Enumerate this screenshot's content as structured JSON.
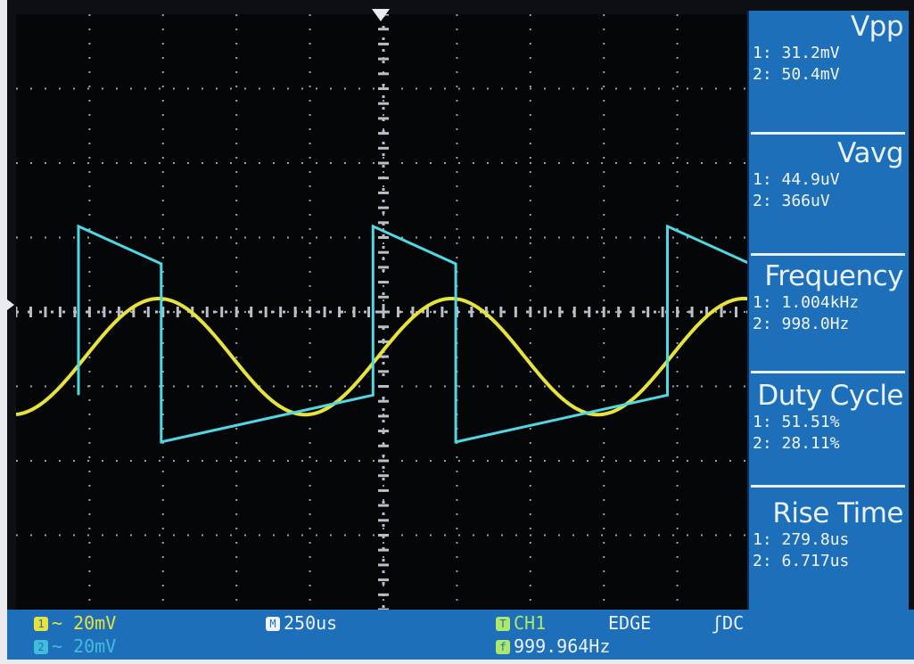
{
  "measurements": [
    {
      "title": "Vpp",
      "ch1": "1: 31.2mV",
      "ch2": "2: 50.4mV"
    },
    {
      "title": "Vavg",
      "ch1": "1: 44.9uV",
      "ch2": "2: 366uV"
    },
    {
      "title": "Frequency",
      "ch1": "1: 1.004kHz",
      "ch2": "2: 998.0Hz"
    },
    {
      "title": "Duty Cycle",
      "ch1": "1: 51.51%",
      "ch2": "2: 28.11%"
    },
    {
      "title": "Rise Time",
      "ch1": "1: 279.8us",
      "ch2": "2: 6.717us"
    }
  ],
  "status": {
    "ch1_scale": "20mV",
    "ch2_scale": "20mV",
    "timebase": "250us",
    "trigger_source": "CH1",
    "trigger_type": "EDGE",
    "trigger_coupling": "DC",
    "trigger_freq": "999.964Hz",
    "coupling_symbol": "~",
    "ch1_badge": "1",
    "ch2_badge": "2",
    "timebase_badge": "M",
    "trigger_badge": "T",
    "freq_badge": "f",
    "edge_symbol": "ʃ"
  },
  "chart_data": {
    "type": "line",
    "series": [
      {
        "color": "#e8e33a",
        "shape": "sine",
        "freq_hz": 1004,
        "vpp_mv": 31.2
      },
      {
        "color": "#4fd8e4",
        "shape": "square-ramp",
        "freq_hz": 998.0,
        "duty": 0.2811,
        "vpp_mv": 50.4
      }
    ],
    "x_divisions": 10,
    "y_divisions": 8,
    "grid": true
  }
}
